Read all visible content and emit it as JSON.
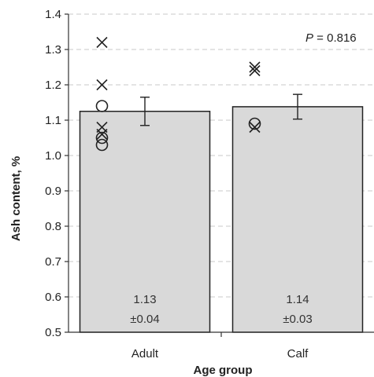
{
  "chart_data": {
    "type": "bar",
    "categories": [
      "Adult",
      "Calf"
    ],
    "values": [
      1.125,
      1.138
    ],
    "errors": [
      0.04,
      0.035
    ],
    "value_labels": [
      "1.13",
      "1.14"
    ],
    "error_labels": [
      "±0.04",
      "±0.03"
    ],
    "xlabel": "Age group",
    "ylabel": "Ash content, %",
    "ylim": [
      0.5,
      1.4
    ],
    "yticks": [
      0.5,
      0.6,
      0.7,
      0.8,
      0.9,
      1.0,
      1.1,
      1.2,
      1.3,
      1.4
    ],
    "ytick_labels": [
      "0.5",
      "0.6",
      "0.7",
      "0.8",
      "0.9",
      "1.0",
      "1.1",
      "1.2",
      "1.3",
      "1.4"
    ],
    "grid": "horizontal-dashed",
    "annotation": {
      "italic": "P",
      "rest": " = 0.816"
    },
    "individual_points": [
      {
        "category": "Adult",
        "cross": [
          1.32,
          1.2,
          1.08,
          1.06
        ],
        "circle": [
          1.14,
          1.05,
          1.03
        ]
      },
      {
        "category": "Calf",
        "cross": [
          1.25,
          1.24,
          1.08
        ],
        "circle": [
          1.09
        ]
      }
    ],
    "colors": {
      "bar_fill": "#d9d9d9",
      "bar_stroke": "#222222",
      "grid": "#c8c8c8"
    }
  }
}
